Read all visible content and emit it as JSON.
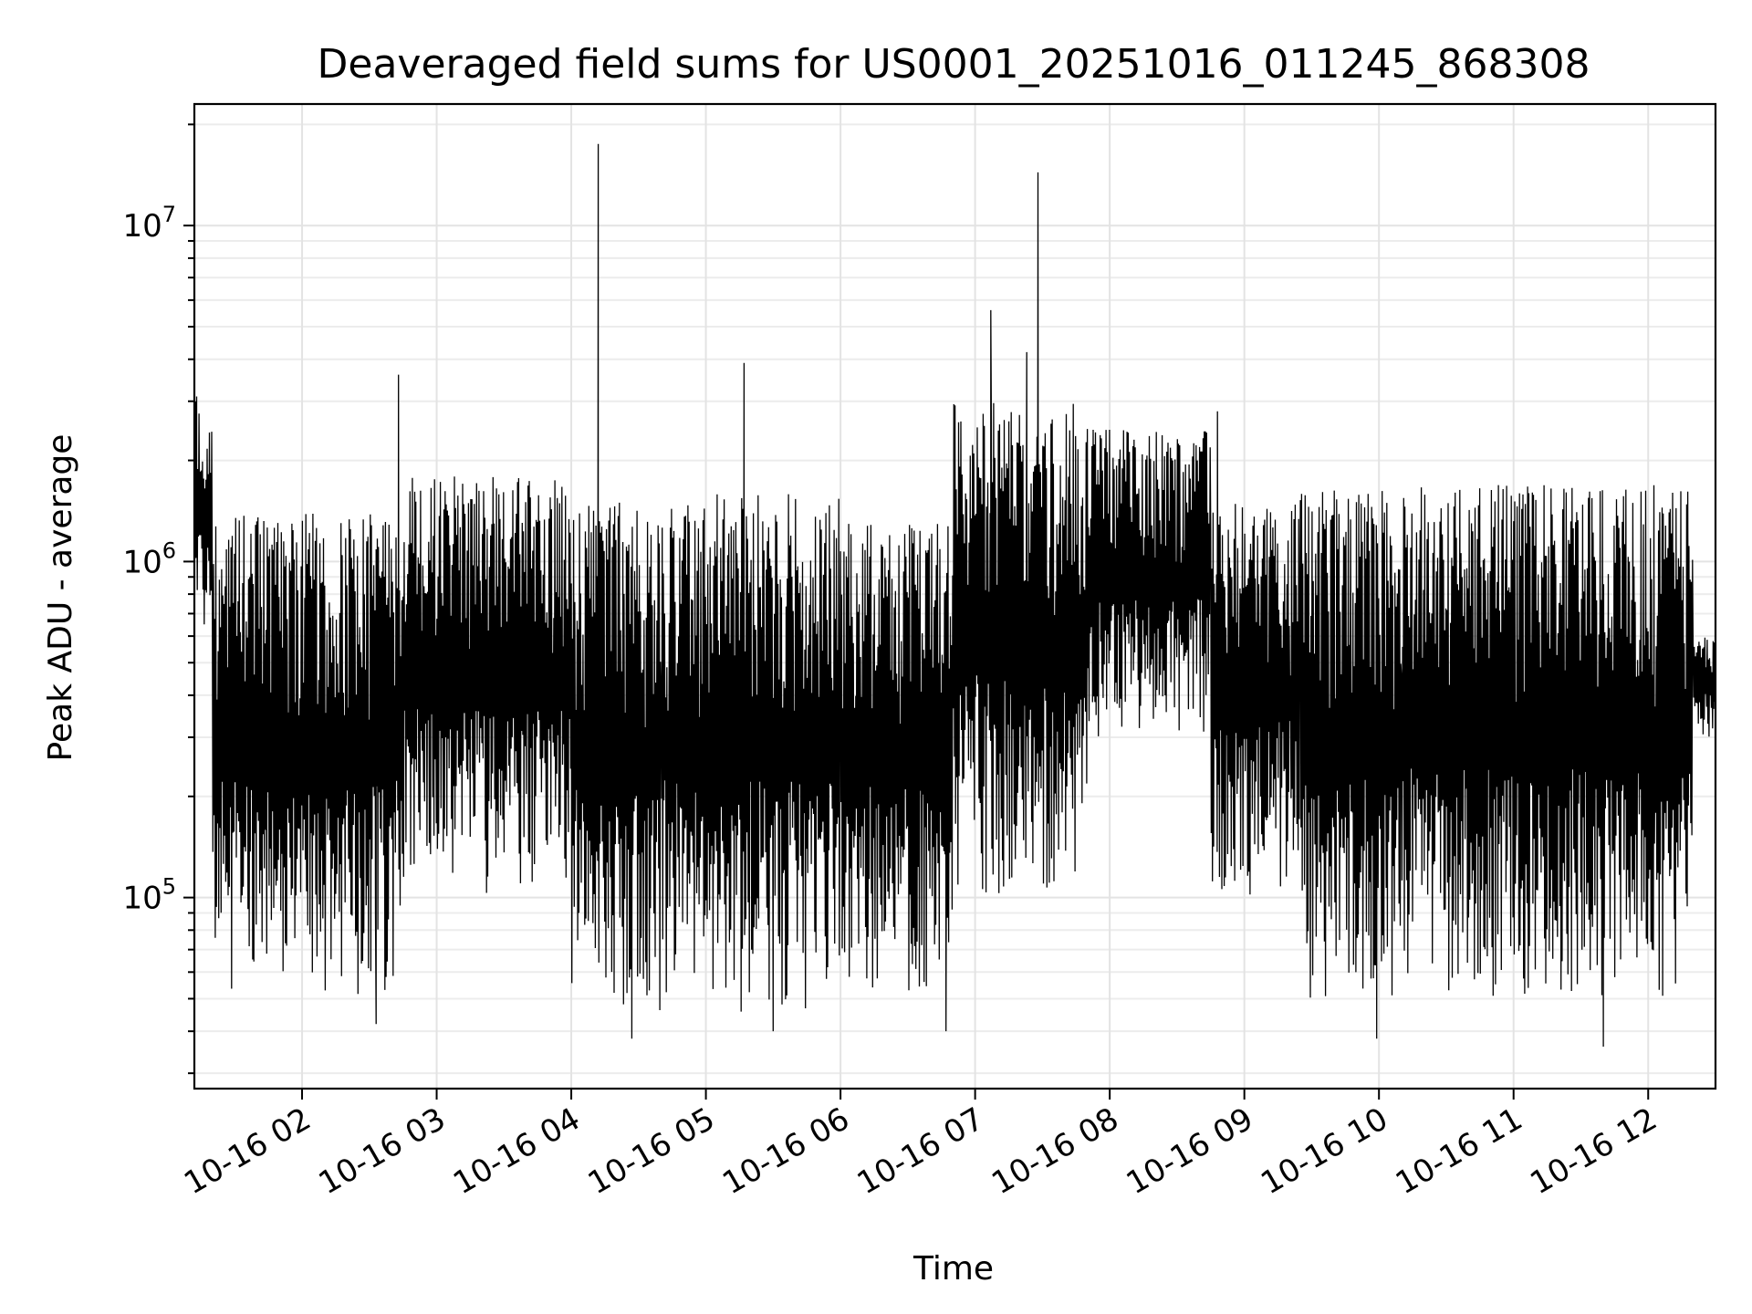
{
  "chart_data": {
    "type": "line",
    "title": "Deaveraged field sums for US0001_20251016_011245_868308",
    "xlabel": "Time",
    "ylabel": "Peak ADU - average",
    "x_scale": "time",
    "y_scale": "log",
    "xlim": [
      "2025-10-16 01:12",
      "2025-10-16 12:30"
    ],
    "ylim": [
      27000,
      23000000
    ],
    "grid": true,
    "legend": "none",
    "x_ticks": [
      {
        "value": "2025-10-16 02:00",
        "label": "10-16 02"
      },
      {
        "value": "2025-10-16 03:00",
        "label": "10-16 03"
      },
      {
        "value": "2025-10-16 04:00",
        "label": "10-16 04"
      },
      {
        "value": "2025-10-16 05:00",
        "label": "10-16 05"
      },
      {
        "value": "2025-10-16 06:00",
        "label": "10-16 06"
      },
      {
        "value": "2025-10-16 07:00",
        "label": "10-16 07"
      },
      {
        "value": "2025-10-16 08:00",
        "label": "10-16 08"
      },
      {
        "value": "2025-10-16 09:00",
        "label": "10-16 09"
      },
      {
        "value": "2025-10-16 10:00",
        "label": "10-16 10"
      },
      {
        "value": "2025-10-16 11:00",
        "label": "10-16 11"
      },
      {
        "value": "2025-10-16 12:00",
        "label": "10-16 12"
      }
    ],
    "y_ticks": [
      {
        "value": 100000,
        "base": "10",
        "exp": "5"
      },
      {
        "value": 1000000,
        "base": "10",
        "exp": "6"
      },
      {
        "value": 10000000,
        "base": "10",
        "exp": "7"
      }
    ],
    "series": [
      {
        "color": "#000000",
        "segments": [
          {
            "start": "2025-10-16 01:12",
            "end": "2025-10-16 01:20",
            "low": 600000,
            "high": 3000000
          },
          {
            "start": "2025-10-16 01:20",
            "end": "2025-10-16 02:45",
            "low": 50000,
            "high": 1400000
          },
          {
            "start": "2025-10-16 02:45",
            "end": "2025-10-16 04:00",
            "low": 100000,
            "high": 1800000
          },
          {
            "start": "2025-10-16 04:00",
            "end": "2025-10-16 04:40",
            "low": 45000,
            "high": 1500000
          },
          {
            "start": "2025-10-16 04:40",
            "end": "2025-10-16 06:00",
            "low": 45000,
            "high": 1600000
          },
          {
            "start": "2025-10-16 06:00",
            "end": "2025-10-16 06:50",
            "low": 50000,
            "high": 1300000
          },
          {
            "start": "2025-10-16 06:50",
            "end": "2025-10-16 07:50",
            "low": 100000,
            "high": 3000000
          },
          {
            "start": "2025-10-16 07:50",
            "end": "2025-10-16 08:45",
            "low": 300000,
            "high": 2500000
          },
          {
            "start": "2025-10-16 08:45",
            "end": "2025-10-16 09:25",
            "low": 100000,
            "high": 1500000
          },
          {
            "start": "2025-10-16 09:25",
            "end": "2025-10-16 10:10",
            "low": 45000,
            "high": 1700000
          },
          {
            "start": "2025-10-16 10:10",
            "end": "2025-10-16 12:20",
            "low": 50000,
            "high": 1700000
          },
          {
            "start": "2025-10-16 12:20",
            "end": "2025-10-16 12:30",
            "low": 300000,
            "high": 600000
          }
        ],
        "peaks": [
          {
            "time": "2025-10-16 01:13",
            "value": 3100000
          },
          {
            "time": "2025-10-16 02:43",
            "value": 3600000
          },
          {
            "time": "2025-10-16 04:12",
            "value": 17500000
          },
          {
            "time": "2025-10-16 05:17",
            "value": 3900000
          },
          {
            "time": "2025-10-16 07:07",
            "value": 5600000
          },
          {
            "time": "2025-10-16 07:23",
            "value": 4200000
          },
          {
            "time": "2025-10-16 07:28",
            "value": 14400000
          },
          {
            "time": "2025-10-16 08:48",
            "value": 2800000
          }
        ],
        "dips": [
          {
            "time": "2025-10-16 02:33",
            "value": 42000
          },
          {
            "time": "2025-10-16 04:27",
            "value": 38000
          },
          {
            "time": "2025-10-16 05:30",
            "value": 40000
          },
          {
            "time": "2025-10-16 06:47",
            "value": 40000
          },
          {
            "time": "2025-10-16 09:59",
            "value": 38000
          },
          {
            "time": "2025-10-16 11:40",
            "value": 36000
          }
        ]
      }
    ]
  }
}
